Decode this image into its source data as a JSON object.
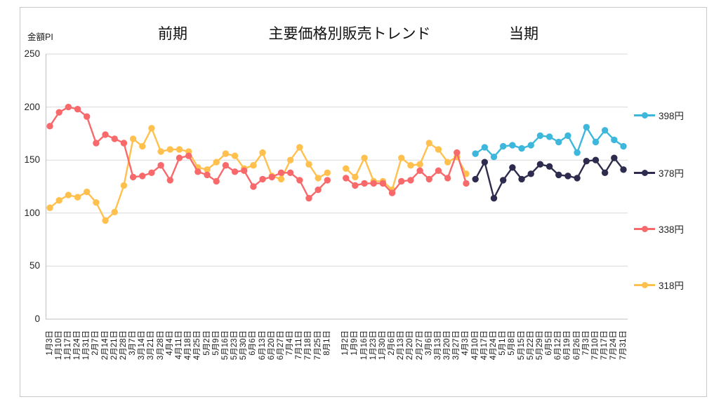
{
  "header": {
    "title": "主要価格別販売トレンド",
    "left_section_label": "前期",
    "right_section_label": "当期",
    "y_axis_unit_label": "金額PI"
  },
  "colors": {
    "grid": "#d9d9d9",
    "axis": "#bfbfbf",
    "series_398": "#3db7dc",
    "series_378": "#2e2c4e",
    "series_338": "#f8696b",
    "series_318": "#ffc04d"
  },
  "chart_data": {
    "type": "line",
    "title": "主要価格別販売トレンド",
    "ylabel": "金額PI",
    "ylim": [
      0,
      250
    ],
    "y_tick_step": 50,
    "y_ticks": [
      0,
      50,
      100,
      150,
      200,
      250
    ],
    "grid": true,
    "legend_position": "right",
    "annotations": [
      "前期",
      "当期"
    ],
    "categories": [
      "1月3日",
      "1月10日",
      "1月17日",
      "1月24日",
      "1月31日",
      "2月7日",
      "2月14日",
      "2月21日",
      "2月28日",
      "3月7日",
      "3月14日",
      "3月21日",
      "3月28日",
      "4月4日",
      "4月11日",
      "4月18日",
      "4月25日",
      "5月2日",
      "5月9日",
      "5月16日",
      "5月23日",
      "5月30日",
      "6月6日",
      "6月13日",
      "6月20日",
      "6月27日",
      "7月4日",
      "7月11日",
      "7月18日",
      "7月25日",
      "8月1日",
      "",
      "1月2日",
      "1月9日",
      "1月16日",
      "1月23日",
      "1月30日",
      "2月6日",
      "2月13日",
      "2月20日",
      "2月27日",
      "3月6日",
      "3月13日",
      "3月20日",
      "3月27日",
      "4月3日",
      "4月10日",
      "4月17日",
      "4月24日",
      "5月1日",
      "5月8日",
      "5月15日",
      "5月22日",
      "5月29日",
      "6月5日",
      "6月12日",
      "6月19日",
      "6月26日",
      "7月3日",
      "7月10日",
      "7月17日",
      "7月24日",
      "7月31日"
    ],
    "series": [
      {
        "name": "398円",
        "color": "#3db7dc",
        "values": [
          null,
          null,
          null,
          null,
          null,
          null,
          null,
          null,
          null,
          null,
          null,
          null,
          null,
          null,
          null,
          null,
          null,
          null,
          null,
          null,
          null,
          null,
          null,
          null,
          null,
          null,
          null,
          null,
          null,
          null,
          null,
          null,
          null,
          null,
          null,
          null,
          null,
          null,
          null,
          null,
          null,
          null,
          null,
          null,
          null,
          null,
          156,
          162,
          153,
          163,
          164,
          161,
          164,
          173,
          172,
          167,
          173,
          157,
          181,
          167,
          178,
          169,
          163
        ]
      },
      {
        "name": "378円",
        "color": "#2e2c4e",
        "values": [
          null,
          null,
          null,
          null,
          null,
          null,
          null,
          null,
          null,
          null,
          null,
          null,
          null,
          null,
          null,
          null,
          null,
          null,
          null,
          null,
          null,
          null,
          null,
          null,
          null,
          null,
          null,
          null,
          null,
          null,
          null,
          null,
          null,
          null,
          null,
          null,
          null,
          null,
          null,
          null,
          null,
          null,
          null,
          null,
          null,
          null,
          132,
          148,
          114,
          131,
          143,
          132,
          137,
          146,
          144,
          136,
          135,
          133,
          149,
          150,
          138,
          152,
          141
        ]
      },
      {
        "name": "338円",
        "color": "#f8696b",
        "values": [
          182,
          195,
          200,
          198,
          191,
          166,
          174,
          170,
          166,
          134,
          135,
          138,
          145,
          131,
          152,
          154,
          139,
          136,
          130,
          145,
          139,
          140,
          125,
          132,
          134,
          138,
          138,
          131,
          114,
          122,
          131,
          null,
          133,
          126,
          128,
          128,
          128,
          119,
          130,
          131,
          140,
          132,
          140,
          133,
          157,
          128,
          null,
          null,
          null,
          null,
          null,
          null,
          null,
          null,
          null,
          null,
          null,
          null,
          null,
          null,
          null,
          null,
          null
        ]
      },
      {
        "name": "318円",
        "color": "#ffc04d",
        "values": [
          105,
          112,
          117,
          115,
          120,
          110,
          93,
          101,
          126,
          170,
          163,
          180,
          158,
          160,
          160,
          158,
          143,
          141,
          148,
          156,
          154,
          142,
          145,
          157,
          135,
          132,
          150,
          162,
          146,
          133,
          138,
          null,
          142,
          134,
          152,
          130,
          130,
          122,
          152,
          145,
          146,
          166,
          160,
          148,
          153,
          137,
          null,
          null,
          null,
          null,
          null,
          null,
          null,
          null,
          null,
          null,
          null,
          null,
          null,
          null,
          null,
          null,
          null
        ]
      }
    ]
  }
}
